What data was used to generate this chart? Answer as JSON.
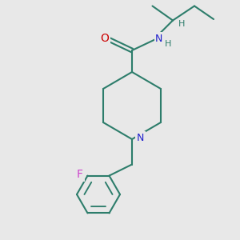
{
  "background_color": "#e8e8e8",
  "bond_color": "#2d7d6b",
  "N_color": "#2020cc",
  "O_color": "#cc0000",
  "F_color": "#cc44cc",
  "H_color": "#2d7d6b",
  "line_width": 1.5,
  "figsize": [
    3.0,
    3.0
  ],
  "dpi": 100,
  "xlim": [
    0,
    10
  ],
  "ylim": [
    0,
    10
  ]
}
